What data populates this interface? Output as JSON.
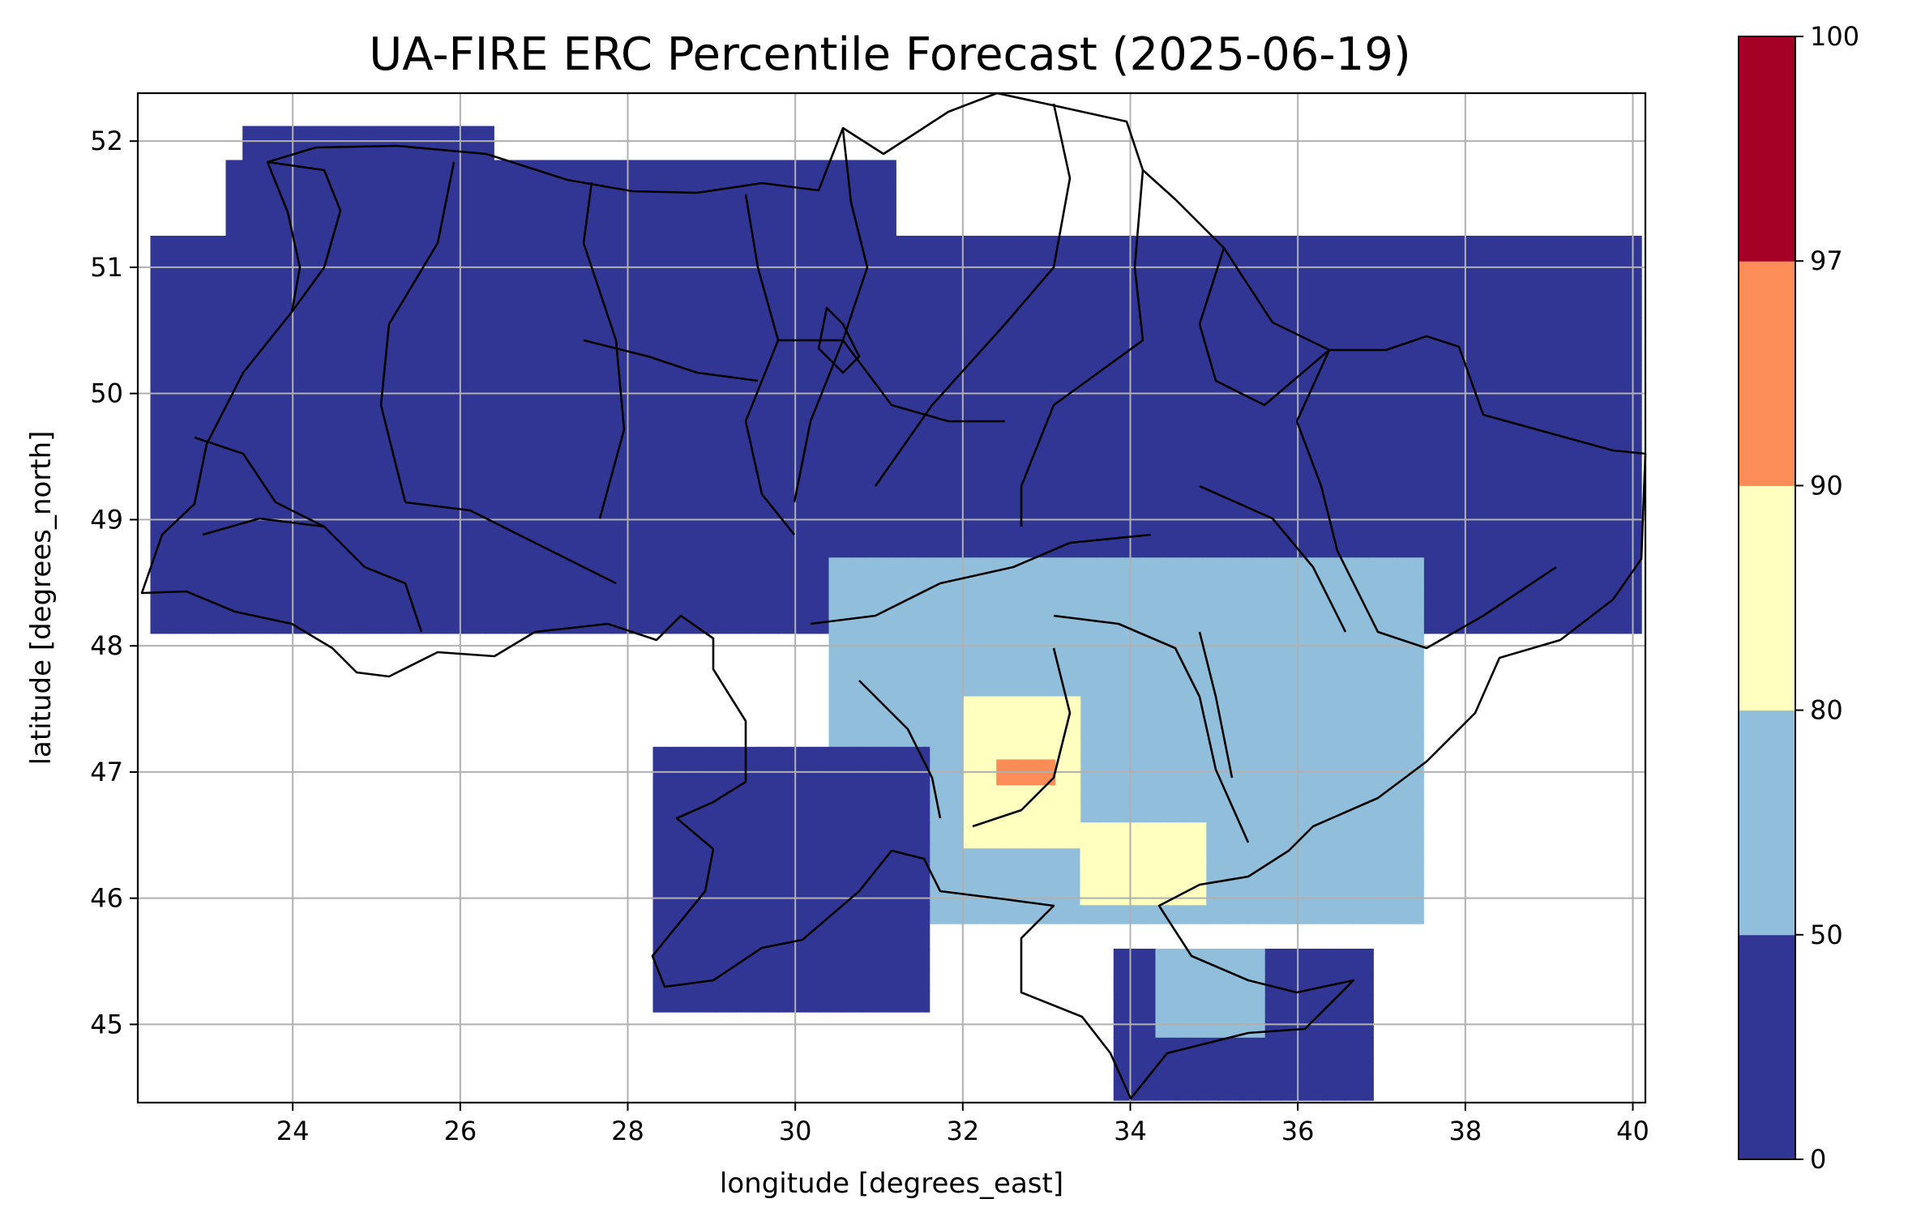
{
  "title": "UA-FIRE ERC Percentile Forecast (2025-06-19)",
  "map": {
    "xlabel": "longitude [degrees_east]",
    "ylabel": "latitude [degrees_north]",
    "x_range": [
      22.15,
      40.15
    ],
    "y_range": [
      44.38,
      52.38
    ],
    "x_ticks": [
      24,
      26,
      28,
      30,
      32,
      34,
      36,
      38,
      40
    ],
    "y_ticks": [
      45,
      46,
      47,
      48,
      49,
      50,
      51,
      52
    ],
    "grid": true,
    "cell_size_deg": [
      0.25,
      0.1667
    ]
  },
  "colorbar": {
    "bounds": [
      0,
      50,
      80,
      90,
      97,
      100
    ],
    "colors": [
      "#313695",
      "#91bfdb",
      "#ffffbf",
      "#fc8d59",
      "#a50026"
    ]
  },
  "chart_data": {
    "type": "heatmap",
    "title": "UA-FIRE ERC Percentile Forecast (2025-06-19)",
    "xlabel": "longitude [degrees_east]",
    "ylabel": "latitude [degrees_north]",
    "xlim": [
      22.15,
      40.15
    ],
    "ylim": [
      44.38,
      52.38
    ],
    "colorbar_levels": [
      0,
      50,
      80,
      90,
      97,
      100
    ],
    "category_by_value_range": {
      "0-50": 0,
      "50-80": 1,
      "80-90": 2,
      "90-97": 3,
      "97-100": 4
    },
    "regions": [
      {
        "class": 0,
        "lon": [
          23.4,
          26.4
        ],
        "lat": [
          51.85,
          52.12
        ]
      },
      {
        "class": 0,
        "lon": [
          23.2,
          31.2
        ],
        "lat": [
          51.25,
          51.85
        ]
      },
      {
        "class": 0,
        "lon": [
          22.3,
          40.1
        ],
        "lat": [
          48.1,
          51.25
        ]
      },
      {
        "class": 1,
        "lon": [
          30.4,
          37.5
        ],
        "lat": [
          45.8,
          48.7
        ]
      },
      {
        "class": 2,
        "lon": [
          32.0,
          33.4
        ],
        "lat": [
          46.4,
          47.6
        ]
      },
      {
        "class": 2,
        "lon": [
          33.4,
          34.9
        ],
        "lat": [
          45.95,
          46.6
        ]
      },
      {
        "class": 3,
        "lon": [
          32.4,
          33.1
        ],
        "lat": [
          46.9,
          47.1
        ]
      },
      {
        "class": 0,
        "lon": [
          28.3,
          31.6
        ],
        "lat": [
          45.1,
          47.2
        ]
      },
      {
        "class": 0,
        "lon": [
          33.8,
          36.9
        ],
        "lat": [
          44.4,
          45.6
        ]
      },
      {
        "class": 1,
        "lon": [
          34.3,
          35.6
        ],
        "lat": [
          44.9,
          45.6
        ]
      }
    ]
  }
}
